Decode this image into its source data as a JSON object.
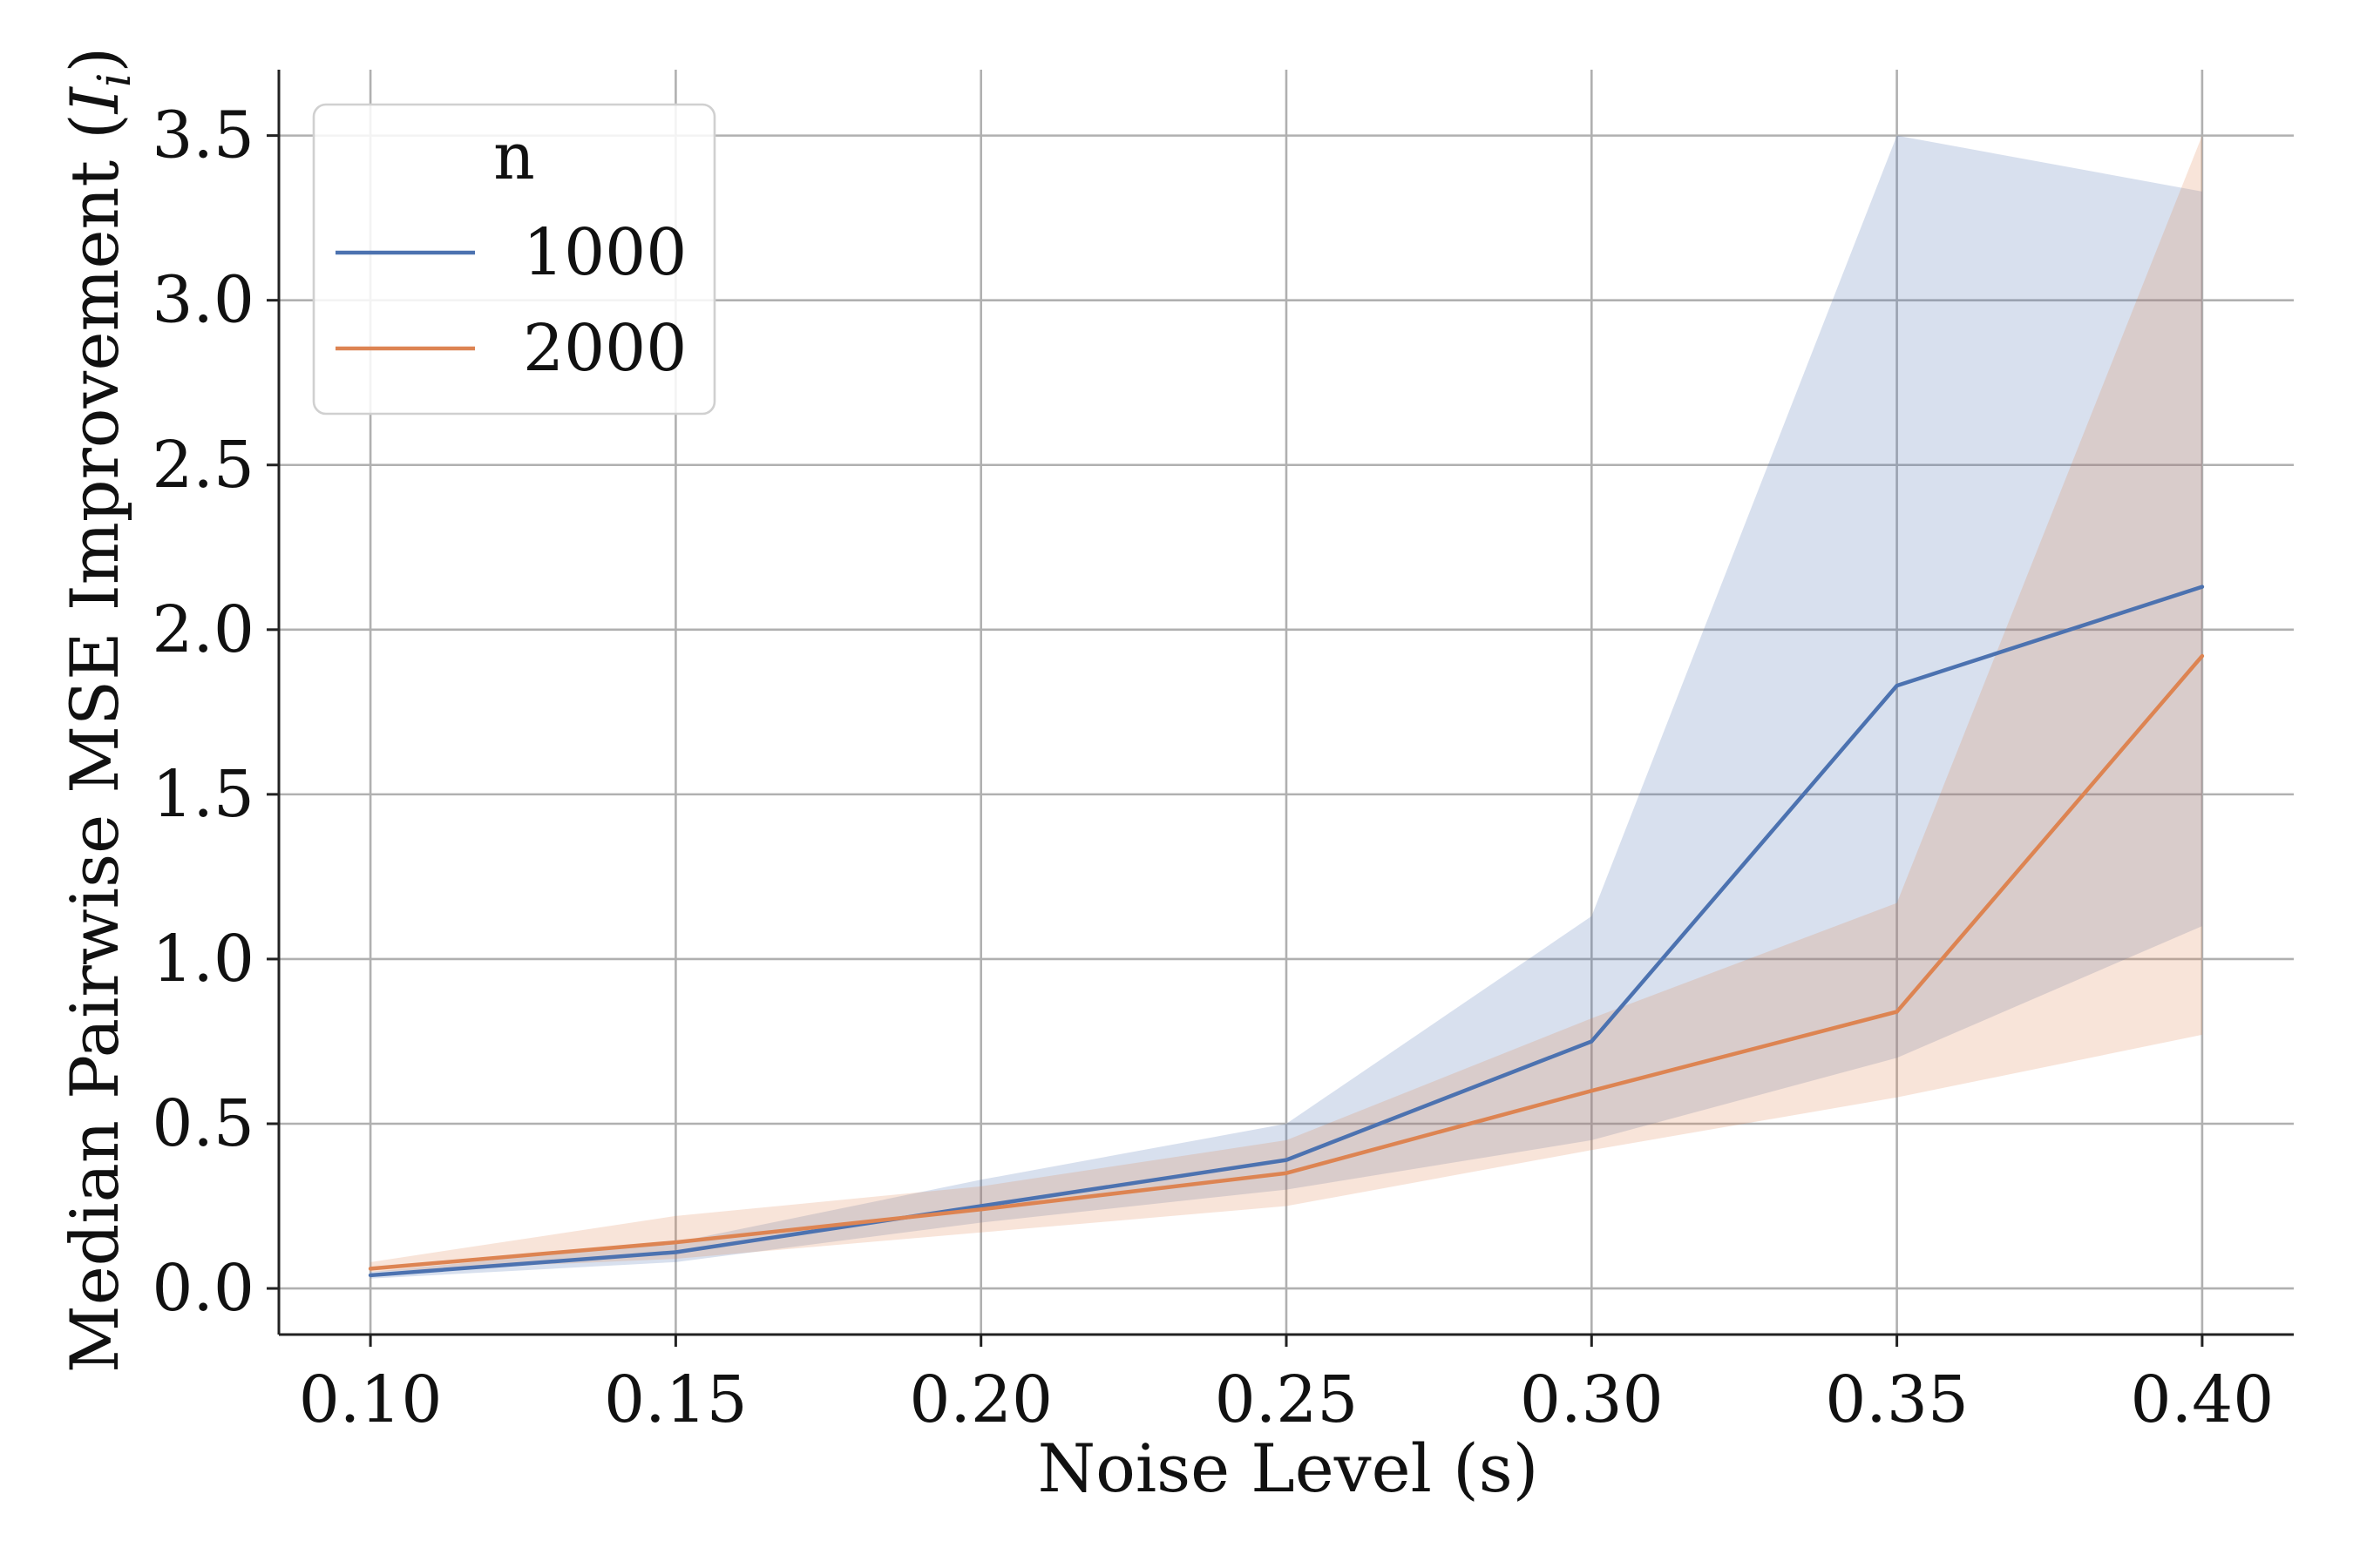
{
  "chart_data": {
    "type": "line",
    "xlabel": "Noise Level (s)",
    "ylabel": "Median Pairwise MSE Improvement (",
    "ylabel_symbol": "I",
    "ylabel_subscript": "i",
    "ylabel_suffix": ")",
    "x": [
      0.1,
      0.15,
      0.2,
      0.25,
      0.3,
      0.35,
      0.4
    ],
    "xticks": [
      "0.10",
      "0.15",
      "0.20",
      "0.25",
      "0.30",
      "0.35",
      "0.40"
    ],
    "yticks": [
      "0.0",
      "0.5",
      "1.0",
      "1.5",
      "2.0",
      "2.5",
      "3.0",
      "3.5"
    ],
    "xlim": [
      0.085,
      0.415
    ],
    "ylim": [
      -0.14,
      3.7
    ],
    "grid": true,
    "legend": {
      "title": "n",
      "position": "top-left"
    },
    "series": [
      {
        "name": "1000",
        "color": "#4c72b0",
        "values": [
          0.04,
          0.11,
          0.25,
          0.39,
          0.75,
          1.83,
          2.13
        ],
        "lower": [
          0.03,
          0.08,
          0.2,
          0.3,
          0.45,
          0.7,
          1.1
        ],
        "upper": [
          0.05,
          0.14,
          0.33,
          0.5,
          1.13,
          3.5,
          3.33
        ]
      },
      {
        "name": "2000",
        "color": "#dd8452",
        "values": [
          0.06,
          0.14,
          0.24,
          0.35,
          0.6,
          0.84,
          1.92
        ],
        "lower": [
          0.05,
          0.09,
          0.17,
          0.25,
          0.42,
          0.58,
          0.77
        ],
        "upper": [
          0.08,
          0.22,
          0.31,
          0.45,
          0.82,
          1.17,
          3.5
        ]
      }
    ]
  }
}
